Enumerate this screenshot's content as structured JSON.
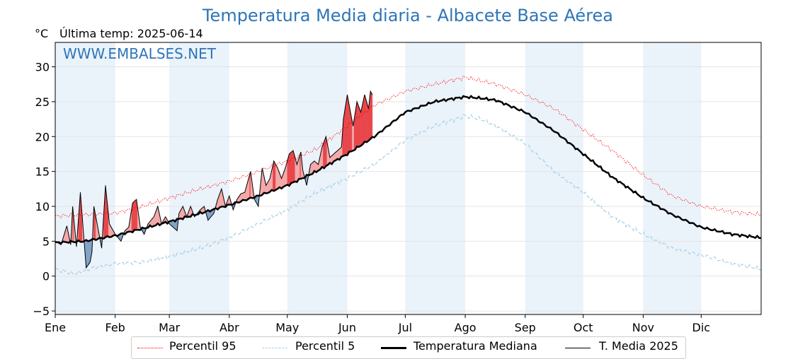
{
  "title": "Temperatura Media diaria - Albacete Base Aérea",
  "unit_label": "°C",
  "last_temp_label": "Última temp: 2025-06-14",
  "watermark": "WWW.EMBALSES.NET",
  "colors": {
    "title": "#2e75b6",
    "p95": "#ff0000",
    "p5": "#a6cfe3",
    "median": "#000000",
    "current": "#000000",
    "above_fill": "#f4a8a8",
    "above_strong": "#e8454a",
    "below_fill": "#7fa3c8",
    "band": "#eaf2fa"
  },
  "legend": {
    "p95": "Percentil 95",
    "p5": "Percentil 5",
    "median": "Temperatura Mediana",
    "current": "T. Media 2025"
  },
  "chart_data": {
    "type": "line",
    "title": "Temperatura Media diaria - Albacete Base Aérea",
    "ylabel": "°C",
    "ylim": [
      -5.5,
      33.5
    ],
    "xlim": [
      0,
      365
    ],
    "month_labels": [
      "Ene",
      "Feb",
      "Mar",
      "Abr",
      "May",
      "Jun",
      "Jul",
      "Ago",
      "Sep",
      "Oct",
      "Nov",
      "Dic"
    ],
    "month_starts": [
      0,
      31,
      59,
      90,
      120,
      151,
      181,
      212,
      243,
      273,
      304,
      334
    ],
    "yticks": [
      -5,
      0,
      5,
      10,
      15,
      20,
      25,
      30
    ],
    "ytick_labels": [
      "−5",
      "0",
      "5",
      "10",
      "15",
      "20",
      "25",
      "30"
    ],
    "grid": true,
    "legend_position": "bottom",
    "series": [
      {
        "name": "Percentil 95",
        "style": "dotted",
        "x": [
          0,
          15,
          31,
          45,
          59,
          75,
          90,
          105,
          120,
          135,
          151,
          165,
          181,
          196,
          212,
          220,
          228,
          243,
          258,
          273,
          288,
          304,
          319,
          334,
          350,
          365
        ],
        "y": [
          8.6,
          8.8,
          9.0,
          10.0,
          11.2,
          12.5,
          13.6,
          15.0,
          16.5,
          18.2,
          21.5,
          24.5,
          26.5,
          27.5,
          28.5,
          28.0,
          27.5,
          26.0,
          24.0,
          21.0,
          18.0,
          14.5,
          11.5,
          10.0,
          9.2,
          8.8
        ]
      },
      {
        "name": "Percentil 5",
        "style": "dashed",
        "x": [
          0,
          10,
          20,
          31,
          45,
          59,
          75,
          90,
          105,
          120,
          135,
          151,
          165,
          181,
          196,
          212,
          220,
          228,
          243,
          258,
          273,
          288,
          304,
          319,
          334,
          350,
          365
        ],
        "y": [
          1.0,
          0.3,
          1.2,
          1.8,
          2.0,
          2.8,
          4.0,
          5.5,
          7.5,
          9.5,
          12.0,
          14.0,
          16.0,
          19.5,
          21.5,
          23.0,
          22.5,
          21.5,
          19.0,
          15.0,
          12.0,
          8.5,
          6.0,
          4.0,
          3.0,
          1.8,
          1.0
        ]
      },
      {
        "name": "Temperatura Mediana",
        "style": "thick",
        "x": [
          0,
          15,
          31,
          45,
          59,
          75,
          90,
          105,
          120,
          135,
          151,
          165,
          181,
          196,
          212,
          220,
          228,
          243,
          258,
          273,
          288,
          304,
          319,
          334,
          350,
          365
        ],
        "y": [
          4.8,
          5.0,
          5.8,
          6.8,
          7.8,
          9.0,
          10.2,
          11.5,
          13.0,
          15.0,
          17.5,
          20.0,
          23.5,
          25.0,
          25.7,
          25.5,
          25.2,
          23.5,
          20.8,
          17.5,
          14.2,
          11.2,
          8.8,
          7.0,
          6.0,
          5.5
        ]
      },
      {
        "name": "T. Media 2025",
        "style": "thin",
        "x": [
          0,
          3,
          6,
          8,
          9,
          11,
          13,
          16,
          18,
          19,
          20,
          22,
          24,
          26,
          28,
          30,
          31,
          34,
          36,
          38,
          40,
          42,
          44,
          46,
          48,
          51,
          53,
          55,
          57,
          59,
          61,
          63,
          64,
          66,
          68,
          70,
          72,
          75,
          77,
          79,
          82,
          84,
          86,
          88,
          90,
          92,
          94,
          96,
          98,
          101,
          103,
          105,
          107,
          109,
          111,
          113,
          115,
          117,
          119,
          121,
          123,
          125,
          127,
          128,
          130,
          132,
          134,
          136,
          138,
          140,
          142,
          144,
          146,
          148,
          149,
          151,
          153,
          154,
          156,
          158,
          160,
          162,
          163,
          164
        ],
        "y": [
          5.0,
          4.5,
          7.2,
          4.5,
          10.0,
          4.2,
          12.0,
          1.2,
          2.0,
          3.5,
          10.0,
          7.0,
          4.0,
          13.0,
          7.5,
          6.5,
          6.0,
          5.0,
          6.5,
          7.0,
          10.5,
          11.0,
          7.0,
          6.0,
          7.5,
          8.5,
          10.0,
          7.5,
          8.5,
          7.5,
          7.0,
          6.5,
          9.0,
          10.0,
          8.5,
          10.0,
          8.5,
          9.5,
          10.0,
          8.0,
          9.0,
          11.0,
          12.5,
          10.0,
          11.5,
          9.5,
          11.0,
          11.8,
          12.0,
          15.0,
          11.0,
          10.0,
          15.5,
          13.0,
          14.0,
          16.5,
          15.5,
          14.0,
          15.5,
          17.5,
          18.0,
          16.0,
          17.8,
          15.2,
          13.0,
          16.0,
          16.5,
          16.0,
          18.5,
          20.0,
          17.0,
          17.5,
          18.0,
          18.5,
          22.5,
          26.0,
          23.0,
          21.5,
          25.0,
          23.5,
          26.0,
          24.0,
          26.5,
          26.0
        ]
      }
    ]
  }
}
